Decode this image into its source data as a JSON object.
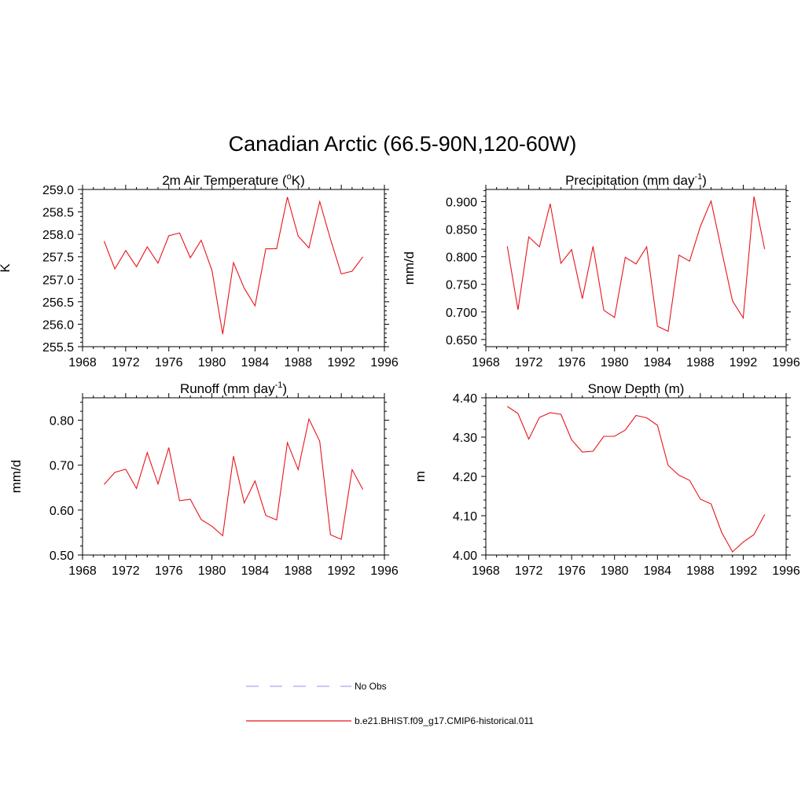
{
  "figure": {
    "title": "Canadian Arctic (66.5-90N,120-60W)",
    "line_color": "#e8141b",
    "obs_color": "#a8a8f0"
  },
  "legend": {
    "entries": [
      {
        "label": "No Obs",
        "style": "dashed",
        "color": "#a8a8f0"
      },
      {
        "label": "b.e21.BHIST.f09_g17.CMIP6-historical.011",
        "style": "solid",
        "color": "#e8141b"
      }
    ]
  },
  "chart_data": [
    {
      "type": "line",
      "title": "2m Air Temperature (",
      "title_parts": {
        "main": "2m Air Temperature (",
        "sup": "o",
        "tail": "K)"
      },
      "xlabel": "",
      "ylabel": "K",
      "xlim": [
        1968,
        1996
      ],
      "ylim": [
        255.5,
        259.0
      ],
      "xticks": [
        "1968",
        "1972",
        "1976",
        "1980",
        "1984",
        "1988",
        "1992",
        "1996"
      ],
      "yticks": [
        "255.5",
        "256.0",
        "256.5",
        "257.0",
        "257.5",
        "258.0",
        "258.5",
        "259.0"
      ],
      "series": [
        {
          "x": [
            1970,
            1971,
            1972,
            1973,
            1974,
            1975,
            1976,
            1977,
            1978,
            1979,
            1980,
            1981,
            1982,
            1983,
            1984,
            1985,
            1986,
            1987,
            1988,
            1989,
            1990,
            1991,
            1992,
            1993,
            1994
          ],
          "values": [
            257.85,
            257.23,
            257.64,
            257.28,
            257.72,
            257.36,
            257.97,
            258.03,
            257.48,
            257.87,
            257.2,
            255.78,
            257.37,
            256.8,
            256.41,
            257.68,
            257.68,
            258.83,
            257.96,
            257.7,
            258.73,
            257.89,
            257.12,
            257.18,
            257.5
          ]
        }
      ]
    },
    {
      "type": "line",
      "title": "Precipitation (mm day",
      "title_parts": {
        "main": "Precipitation (mm day",
        "sup": "-1",
        "tail": ")"
      },
      "xlabel": "",
      "ylabel": "mm/d",
      "xlim": [
        1968,
        1996
      ],
      "ylim": [
        0.637,
        0.922
      ],
      "xticks": [
        "1968",
        "1972",
        "1976",
        "1980",
        "1984",
        "1988",
        "1992",
        "1996"
      ],
      "yticks": [
        "0.650",
        "0.700",
        "0.750",
        "0.800",
        "0.850",
        "0.900"
      ],
      "series": [
        {
          "x": [
            1970,
            1971,
            1972,
            1973,
            1974,
            1975,
            1976,
            1977,
            1978,
            1979,
            1980,
            1981,
            1982,
            1983,
            1984,
            1985,
            1986,
            1987,
            1988,
            1989,
            1990,
            1991,
            1992,
            1993,
            1994
          ],
          "values": [
            0.819,
            0.704,
            0.836,
            0.818,
            0.896,
            0.788,
            0.813,
            0.724,
            0.819,
            0.703,
            0.69,
            0.799,
            0.787,
            0.818,
            0.674,
            0.665,
            0.803,
            0.792,
            0.855,
            0.901,
            0.81,
            0.72,
            0.689,
            0.909,
            0.814
          ]
        }
      ]
    },
    {
      "type": "line",
      "title": "Runoff (mm day",
      "title_parts": {
        "main": "Runoff (mm day",
        "sup": "-1",
        "tail": ")"
      },
      "xlabel": "",
      "ylabel": "mm/d",
      "xlim": [
        1968,
        1996
      ],
      "ylim": [
        0.5,
        0.85
      ],
      "xticks": [
        "1968",
        "1972",
        "1976",
        "1980",
        "1984",
        "1988",
        "1992",
        "1996"
      ],
      "yticks": [
        "0.50",
        "0.60",
        "0.70",
        "0.80"
      ],
      "series": [
        {
          "x": [
            1970,
            1971,
            1972,
            1973,
            1974,
            1975,
            1976,
            1977,
            1978,
            1979,
            1980,
            1981,
            1982,
            1983,
            1984,
            1985,
            1986,
            1987,
            1988,
            1989,
            1990,
            1991,
            1992,
            1993,
            1994
          ],
          "values": [
            0.657,
            0.684,
            0.691,
            0.648,
            0.728,
            0.658,
            0.739,
            0.621,
            0.624,
            0.579,
            0.564,
            0.543,
            0.72,
            0.616,
            0.665,
            0.588,
            0.578,
            0.75,
            0.69,
            0.803,
            0.753,
            0.545,
            0.535,
            0.69,
            0.646
          ]
        }
      ]
    },
    {
      "type": "line",
      "title": "Snow Depth (m)",
      "title_parts": {
        "main": "Snow Depth (m)",
        "sup": "",
        "tail": ""
      },
      "xlabel": "",
      "ylabel": "m",
      "xlim": [
        1968,
        1996
      ],
      "ylim": [
        4.0,
        4.4
      ],
      "xticks": [
        "1968",
        "1972",
        "1976",
        "1980",
        "1984",
        "1988",
        "1992",
        "1996"
      ],
      "yticks": [
        "4.00",
        "4.10",
        "4.20",
        "4.30",
        "4.40"
      ],
      "series": [
        {
          "x": [
            1970,
            1971,
            1972,
            1973,
            1974,
            1975,
            1976,
            1977,
            1978,
            1979,
            1980,
            1981,
            1982,
            1983,
            1984,
            1985,
            1986,
            1987,
            1988,
            1989,
            1990,
            1991,
            1992,
            1993,
            1994
          ],
          "values": [
            4.378,
            4.36,
            4.295,
            4.35,
            4.362,
            4.358,
            4.293,
            4.262,
            4.264,
            4.302,
            4.302,
            4.318,
            4.355,
            4.349,
            4.33,
            4.228,
            4.203,
            4.19,
            4.142,
            4.13,
            4.057,
            4.008,
            4.033,
            4.052,
            4.103
          ]
        }
      ]
    }
  ]
}
